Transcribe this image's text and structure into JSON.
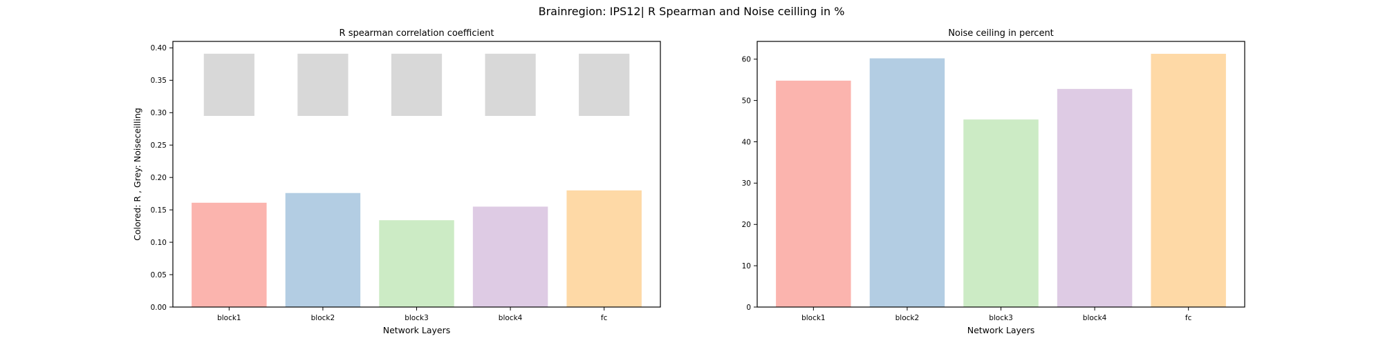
{
  "figure": {
    "title": "Brainregion: IPS12| R Spearman and Noise ceilling in %"
  },
  "chart_data": [
    {
      "type": "bar",
      "title": "R spearman correlation coefficient",
      "xlabel": "Network Layers",
      "ylabel": "Colored: R , Grey: Noiseceilling",
      "categories": [
        "block1",
        "block2",
        "block3",
        "block4",
        "fc"
      ],
      "series": [
        {
          "values": [
            0.161,
            0.176,
            0.134,
            0.155,
            0.18
          ]
        }
      ],
      "noise_ceiling": {
        "lower": [
          0.295,
          0.295,
          0.295,
          0.295,
          0.295
        ],
        "upper": [
          0.391,
          0.391,
          0.391,
          0.391,
          0.391
        ],
        "color": "#d8d8d8"
      },
      "ylim": [
        0,
        0.41
      ],
      "yticks": [
        "0.00",
        "0.05",
        "0.10",
        "0.15",
        "0.20",
        "0.25",
        "0.30",
        "0.35",
        "0.40"
      ],
      "ytick_values": [
        0,
        0.05,
        0.1,
        0.15,
        0.2,
        0.25,
        0.3,
        0.35,
        0.4
      ],
      "colors": [
        "#fbb4ae",
        "#b3cde3",
        "#ccebc5",
        "#decbe4",
        "#fed9a6"
      ],
      "grid": false
    },
    {
      "type": "bar",
      "title": "Noise ceiling in percent",
      "xlabel": "Network Layers",
      "ylabel": "",
      "categories": [
        "block1",
        "block2",
        "block3",
        "block4",
        "fc"
      ],
      "series": [
        {
          "values": [
            54.8,
            60.2,
            45.4,
            52.8,
            61.3
          ]
        }
      ],
      "ylim": [
        0,
        64.3
      ],
      "yticks": [
        "0",
        "10",
        "20",
        "30",
        "40",
        "50",
        "60"
      ],
      "ytick_values": [
        0,
        10,
        20,
        30,
        40,
        50,
        60
      ],
      "colors": [
        "#fbb4ae",
        "#b3cde3",
        "#ccebc5",
        "#decbe4",
        "#fed9a6"
      ],
      "grid": false
    }
  ]
}
